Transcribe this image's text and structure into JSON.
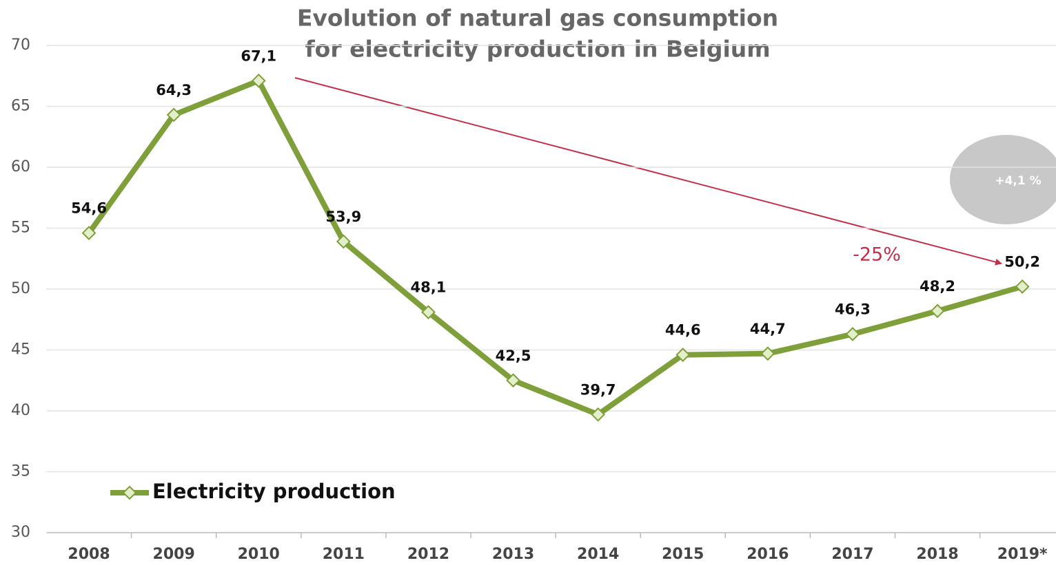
{
  "chart_data": {
    "type": "line",
    "title": [
      "Evolution of natural gas consumption",
      "for electricity production in Belgium"
    ],
    "categories": [
      "2008",
      "2009",
      "2010",
      "2011",
      "2012",
      "2013",
      "2014",
      "2015",
      "2016",
      "2017",
      "2018",
      "2019*"
    ],
    "series": [
      {
        "name": "Electricity production",
        "color": "#7f9f3a",
        "marker_fill": "#e2efc9",
        "values": [
          54.6,
          64.3,
          67.1,
          53.9,
          48.1,
          42.5,
          39.7,
          44.6,
          44.7,
          46.3,
          48.2,
          50.2
        ],
        "value_labels": [
          "54,6",
          "64,3",
          "67,1",
          "53,9",
          "48,1",
          "42,5",
          "39,7",
          "44,6",
          "44,7",
          "46,3",
          "48,2",
          "50,2"
        ]
      }
    ],
    "ylim": [
      30,
      70
    ],
    "yticks": [
      30,
      35,
      40,
      45,
      50,
      55,
      60,
      65,
      70
    ],
    "grid": true,
    "legend": "bottom-left",
    "annotations": [
      "-25%",
      "+4,1 %"
    ]
  }
}
